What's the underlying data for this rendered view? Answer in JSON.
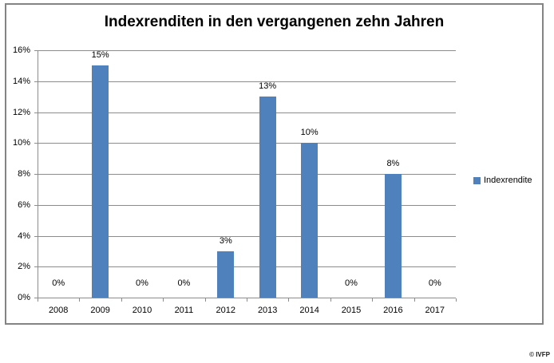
{
  "title": "Indexrenditen in den vergangenen zehn Jahren",
  "legend": {
    "items": [
      {
        "label": "Indexrendite",
        "color": "#4f81bd"
      }
    ]
  },
  "footer": {
    "copyright": "© IVFP"
  },
  "colors": {
    "bar": "#4f81bd",
    "grid": "#8c8c8c",
    "axis": "#8c8c8c",
    "frame_border": "#848484",
    "text": "#000000"
  },
  "chart_data": {
    "type": "bar",
    "title": "Indexrenditen in den vergangenen zehn Jahren",
    "categories": [
      "2008",
      "2009",
      "2010",
      "2011",
      "2012",
      "2013",
      "2014",
      "2015",
      "2016",
      "2017"
    ],
    "series": [
      {
        "name": "Indexrendite",
        "values": [
          0,
          15,
          0,
          0,
          3,
          13,
          10,
          0,
          8,
          0
        ],
        "labels": [
          "0%",
          "15%",
          "0%",
          "0%",
          "3%",
          "13%",
          "10%",
          "0%",
          "8%",
          "0%"
        ]
      }
    ],
    "xlabel": "",
    "ylabel": "",
    "ylim": [
      0,
      16
    ],
    "ytick_step": 2,
    "ytick_labels": [
      "0%",
      "2%",
      "4%",
      "6%",
      "8%",
      "10%",
      "12%",
      "14%",
      "16%"
    ],
    "grid": true,
    "legend_position": "right",
    "data_labels_visible": true
  }
}
